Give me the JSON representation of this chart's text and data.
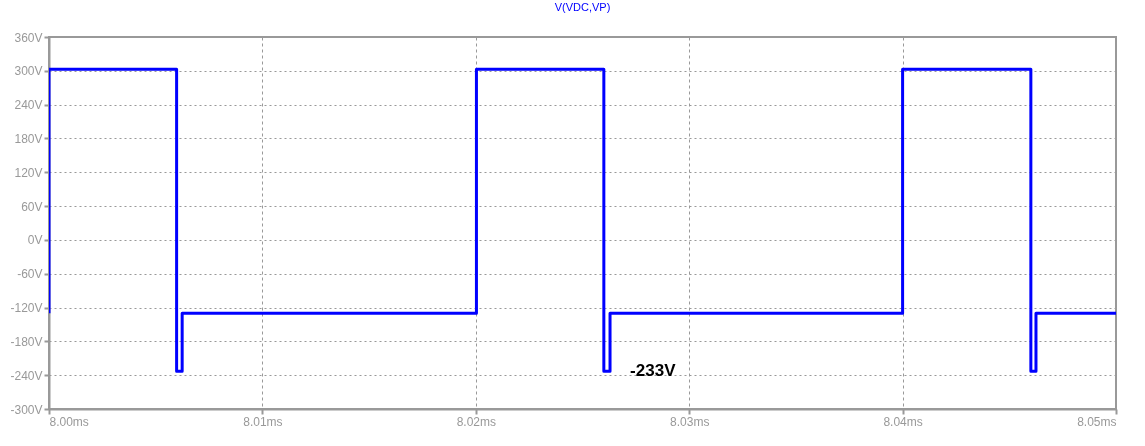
{
  "chart_data": {
    "type": "line",
    "title": "V(VDC,VP)",
    "legend": false,
    "grid": true,
    "marker": "none",
    "line_style": "solid",
    "x": [
      8.0,
      8.0,
      8.00598,
      8.00598,
      8.00624,
      8.00624,
      8.02003,
      8.02003,
      8.026,
      8.026,
      8.02629,
      8.02629,
      8.04,
      8.04,
      8.04601,
      8.04601,
      8.04625,
      8.04625,
      8.05
    ],
    "series": [
      {
        "color": "#0000ff",
        "values": [
          -130,
          303,
          303,
          -233,
          -233,
          -130,
          -130,
          303,
          303,
          -233,
          -233,
          -130,
          -130,
          303,
          303,
          -233,
          -233,
          -130,
          -130
        ]
      }
    ],
    "xlim": [
      8.0,
      8.05
    ],
    "xticks": [
      {
        "value": 8.0,
        "label": "8.00ms"
      },
      {
        "value": 8.01,
        "label": "8.01ms"
      },
      {
        "value": 8.02,
        "label": "8.02ms"
      },
      {
        "value": 8.03,
        "label": "8.03ms"
      },
      {
        "value": 8.04,
        "label": "8.04ms"
      },
      {
        "value": 8.05,
        "label": "8.05ms"
      }
    ],
    "ylim": [
      -300,
      360
    ],
    "yticks": [
      {
        "value": -300,
        "label": "-300V"
      },
      {
        "value": -240,
        "label": "-240V"
      },
      {
        "value": -180,
        "label": "-180V"
      },
      {
        "value": -120,
        "label": "-120V"
      },
      {
        "value": -60,
        "label": "-60V"
      },
      {
        "value": 0,
        "label": "0V"
      },
      {
        "value": 60,
        "label": "60V"
      },
      {
        "value": 120,
        "label": "120V"
      },
      {
        "value": 180,
        "label": "180V"
      },
      {
        "value": 240,
        "label": "240V"
      },
      {
        "value": 300,
        "label": "300V"
      },
      {
        "value": 360,
        "label": "360V"
      }
    ],
    "annotations": [
      {
        "text": "-233V",
        "x": 8.0262,
        "y": -233
      }
    ]
  }
}
